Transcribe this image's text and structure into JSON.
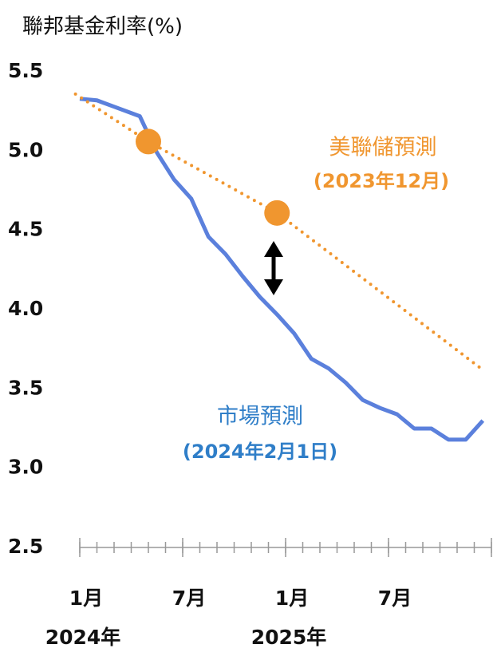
{
  "chart_data": {
    "type": "line",
    "title": "聯邦基金利率(%)",
    "xlim": [
      0,
      24
    ],
    "xticks": [
      {
        "value": 0,
        "label": "1月"
      },
      {
        "value": 6,
        "label": "7月"
      },
      {
        "value": 12,
        "label": "1月"
      },
      {
        "value": 18,
        "label": "7月"
      },
      24
    ],
    "xminor_step": 1,
    "x_year_labels": [
      {
        "value": 0,
        "label": "2024年"
      },
      {
        "value": 12,
        "label": "2025年"
      }
    ],
    "ylim": [
      2.5,
      5.5
    ],
    "yticks": [
      {
        "value": 2.5,
        "label": "2.5"
      },
      {
        "value": 3.0,
        "label": "3.0"
      },
      {
        "value": 3.5,
        "label": "3.5"
      },
      {
        "value": 4.0,
        "label": "4.0"
      },
      {
        "value": 4.5,
        "label": "4.5"
      },
      {
        "value": 5.0,
        "label": "5.0"
      },
      {
        "value": 5.5,
        "label": "5.5"
      }
    ],
    "series": [
      {
        "name": "市場預測",
        "subname": "(2024年2月1日)",
        "color": "#5b80dc",
        "label_color": "#2f7ec8",
        "style": "solid",
        "x": [
          0,
          1,
          2,
          3.5,
          4.5,
          5.5,
          6.5,
          7.5,
          8.5,
          9.5,
          10.5,
          11.5,
          12.5,
          13.5,
          14.5,
          15.5,
          16.5,
          17.5,
          18.5,
          19.5,
          20.5,
          21.5,
          22.5,
          23.5
        ],
        "values": [
          5.33,
          5.32,
          5.28,
          5.22,
          4.99,
          4.82,
          4.7,
          4.46,
          4.35,
          4.21,
          4.08,
          3.97,
          3.85,
          3.69,
          3.63,
          3.54,
          3.43,
          3.38,
          3.34,
          3.25,
          3.25,
          3.18,
          3.18,
          3.3
        ]
      },
      {
        "name": "美聯儲預測",
        "subname": "(2023年12月)",
        "color": "#f0962f",
        "label_color": "#f0962f",
        "style": "dotted",
        "markers": [
          1,
          2
        ],
        "x": [
          -0.25,
          4.0,
          11.5,
          23.5
        ],
        "values": [
          5.36,
          5.06,
          4.61,
          3.62
        ]
      }
    ]
  }
}
